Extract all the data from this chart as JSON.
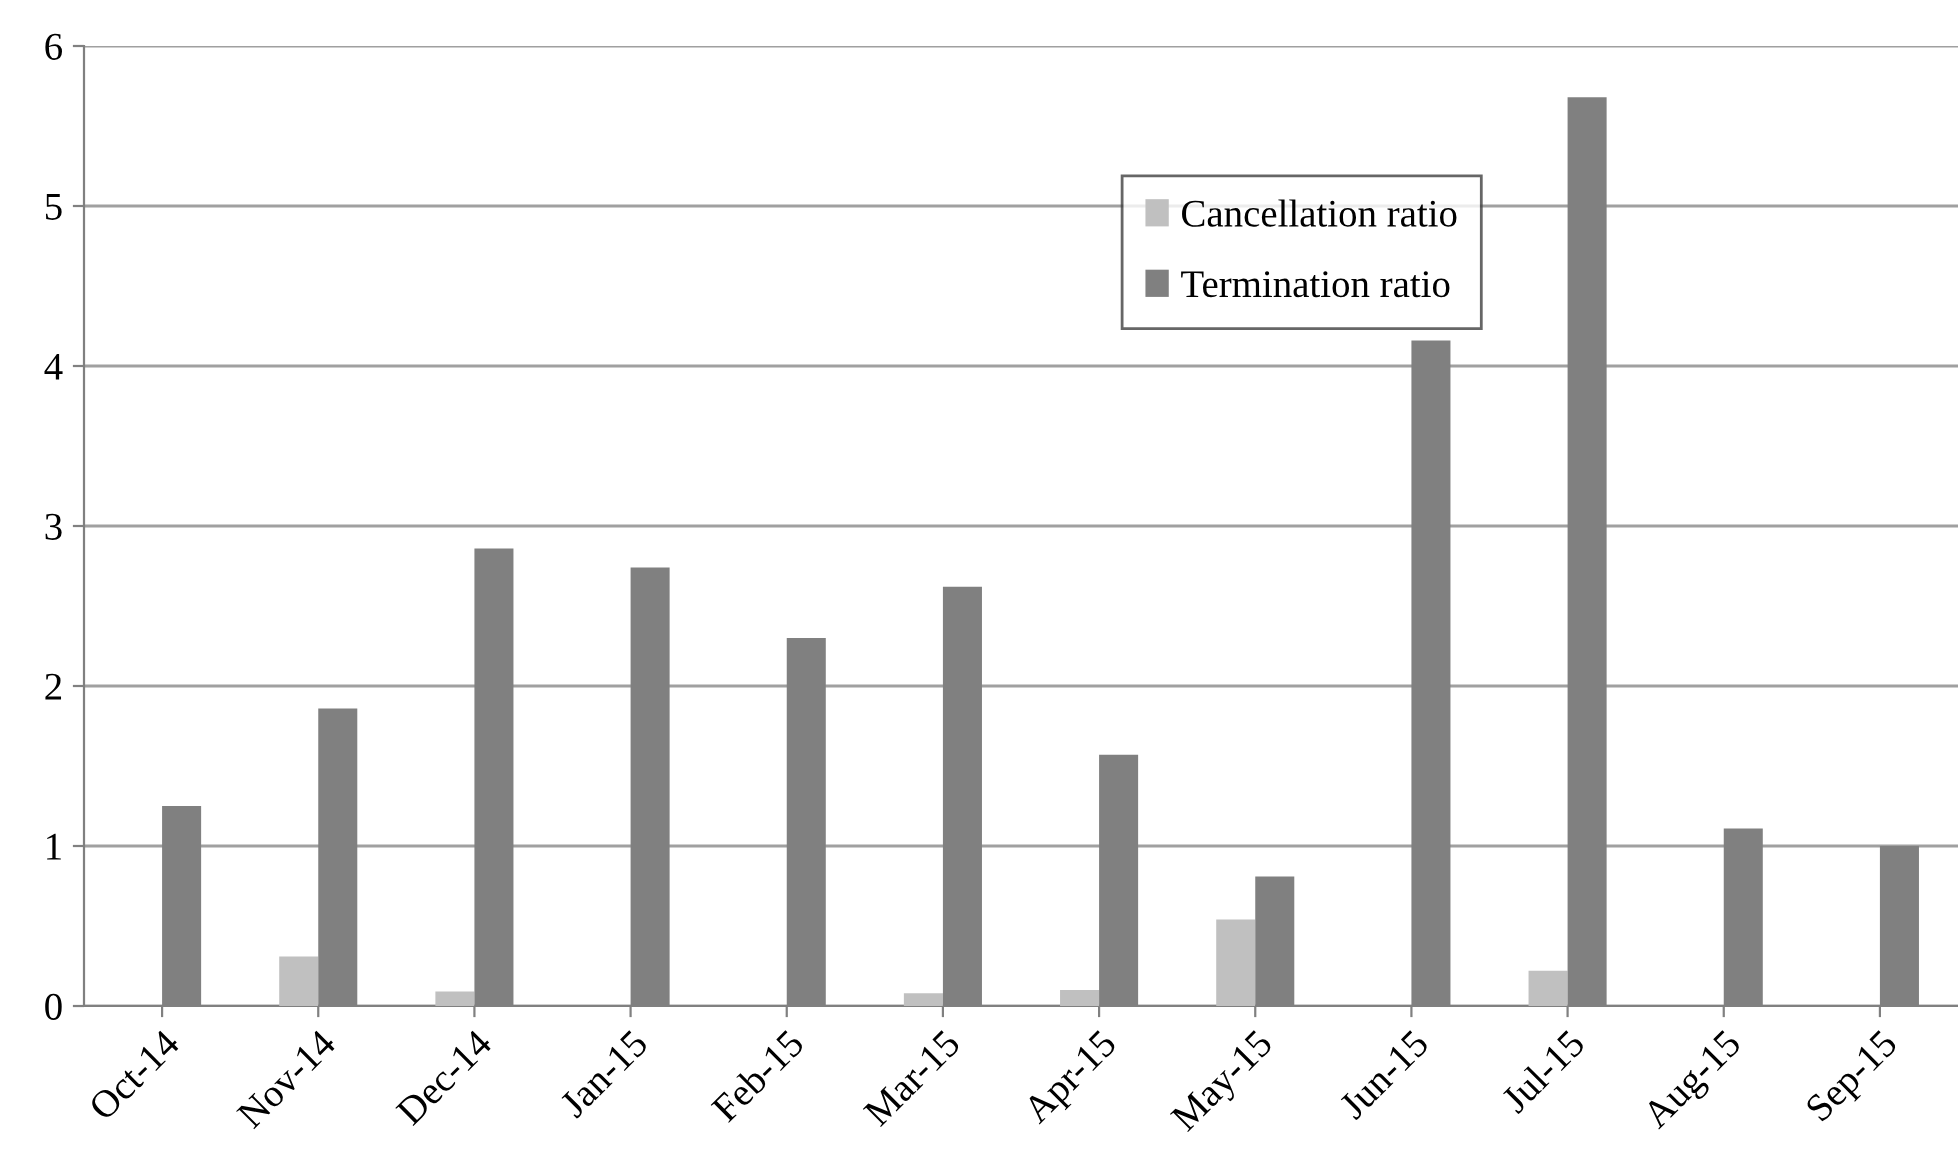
{
  "chart_data": {
    "type": "bar",
    "categories": [
      "Oct-14",
      "Nov-14",
      "Dec-14",
      "Jan-15",
      "Feb-15",
      "Mar-15",
      "Apr-15",
      "May-15",
      "Jun-15",
      "Jul-15",
      "Aug-15",
      "Sep-15"
    ],
    "series": [
      {
        "name": "Cancellation ratio",
        "color": "#c0c0c0",
        "values": [
          0,
          0.31,
          0.09,
          0,
          0,
          0.08,
          0.1,
          0.54,
          0,
          0.22,
          0,
          0
        ]
      },
      {
        "name": "Termination ratio",
        "color": "#808080",
        "values": [
          1.25,
          1.86,
          2.86,
          2.74,
          2.3,
          2.62,
          1.57,
          0.81,
          4.16,
          5.68,
          1.11,
          1.0
        ]
      }
    ],
    "ylim": [
      0,
      6
    ],
    "yticks": [
      0,
      1,
      2,
      3,
      4,
      5,
      6
    ],
    "grid": "y",
    "legend": "top right"
  }
}
